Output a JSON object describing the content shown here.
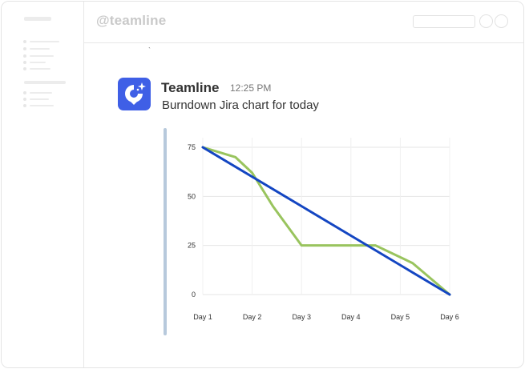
{
  "topbar": {
    "channel": "@teamline"
  },
  "message": {
    "sender": "Teamline",
    "time": "12:25 PM",
    "text": "Burndown Jira chart for today",
    "avatar_icon": "teamline-logo-icon",
    "avatar_color": "#3f5fe6"
  },
  "chart_data": {
    "type": "line",
    "categories": [
      "Day 1",
      "Day 2",
      "Day 3",
      "Day 4",
      "Day 5",
      "Day 6"
    ],
    "ylim": [
      0,
      75
    ],
    "yticks": [
      0,
      25,
      50,
      75
    ],
    "grid": true,
    "series": [
      {
        "color": "#99c45e",
        "points": [
          [
            1,
            75
          ],
          [
            1.66,
            70
          ],
          [
            2,
            62
          ],
          [
            2.42,
            45
          ],
          [
            3,
            25
          ],
          [
            4,
            25
          ],
          [
            4.5,
            25
          ],
          [
            5.25,
            16
          ],
          [
            6,
            0
          ]
        ]
      },
      {
        "color": "#1446c2",
        "points": [
          [
            1,
            75
          ],
          [
            6,
            0
          ]
        ]
      }
    ]
  }
}
